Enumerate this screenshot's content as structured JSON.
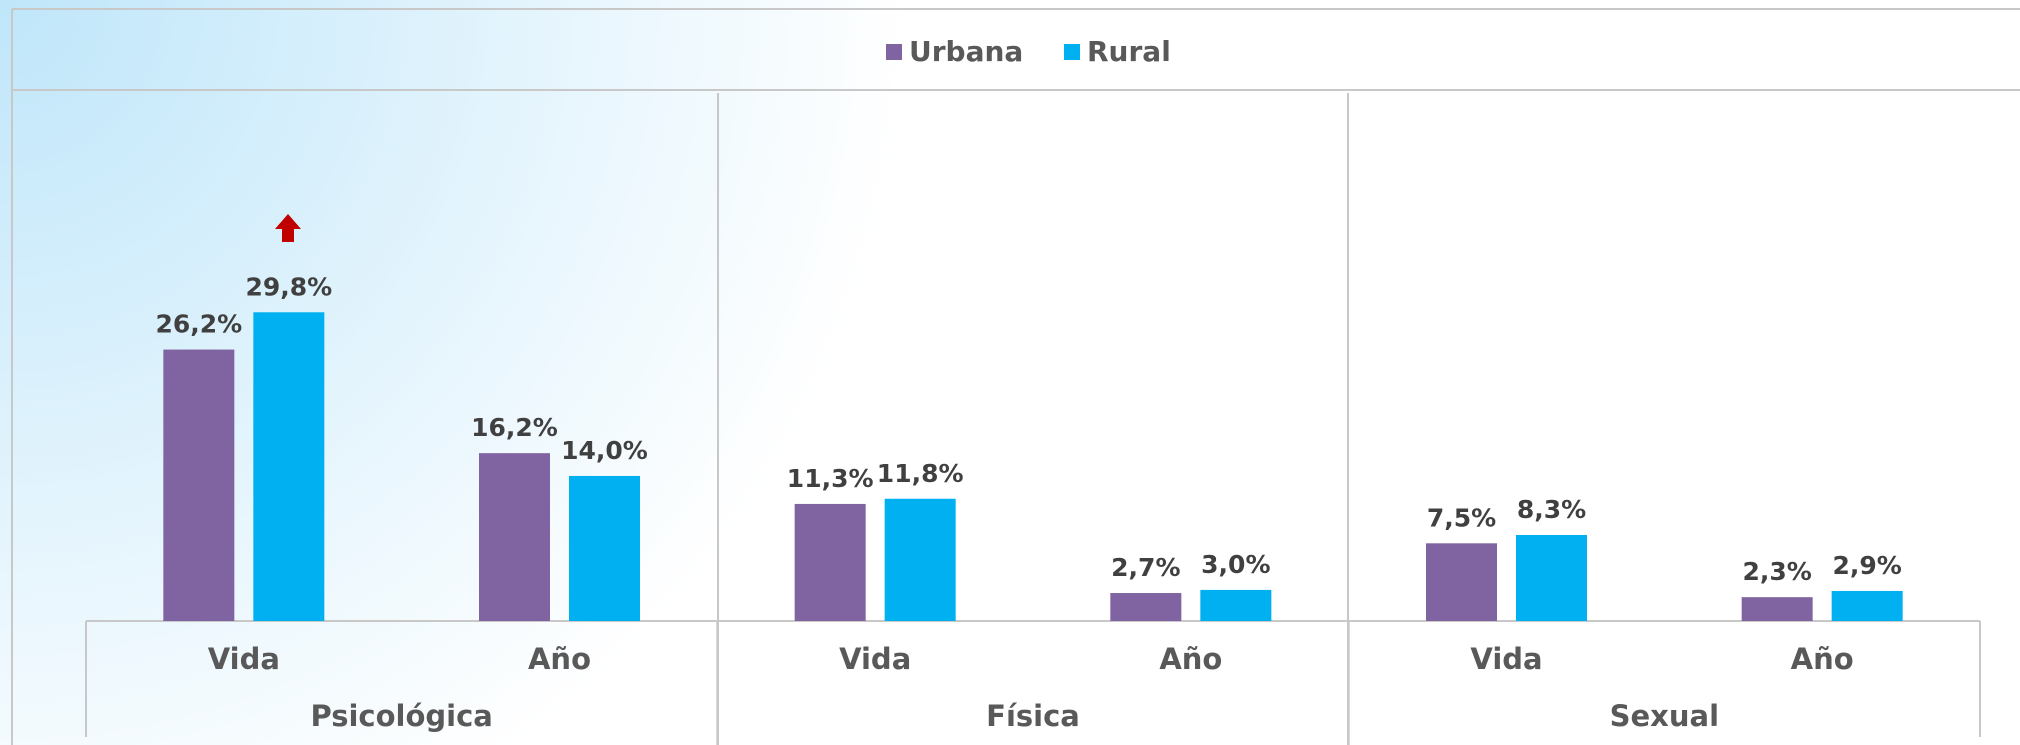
{
  "chart_data": {
    "type": "bar",
    "groups": [
      "Psicológica",
      "Física",
      "Sexual"
    ],
    "categories": [
      "Vida",
      "Año",
      "Vida",
      "Año",
      "Vida",
      "Año"
    ],
    "series": [
      {
        "name": "Urbana",
        "color": "#8064a2",
        "values": [
          26.2,
          16.2,
          11.3,
          2.7,
          7.5,
          2.3
        ],
        "value_labels": [
          "26,2%",
          "16,2%",
          "11,3%",
          "2,7%",
          "7,5%",
          "2,3%"
        ]
      },
      {
        "name": "Rural",
        "color": "#00b0f0",
        "values": [
          29.8,
          14.0,
          11.8,
          3.0,
          8.3,
          2.9
        ],
        "value_labels": [
          "29,8%",
          "14,0%",
          "11,8%",
          "3,0%",
          "8,3%",
          "2,9%"
        ]
      }
    ],
    "ylim": [
      0,
      50
    ],
    "legend": "top"
  }
}
